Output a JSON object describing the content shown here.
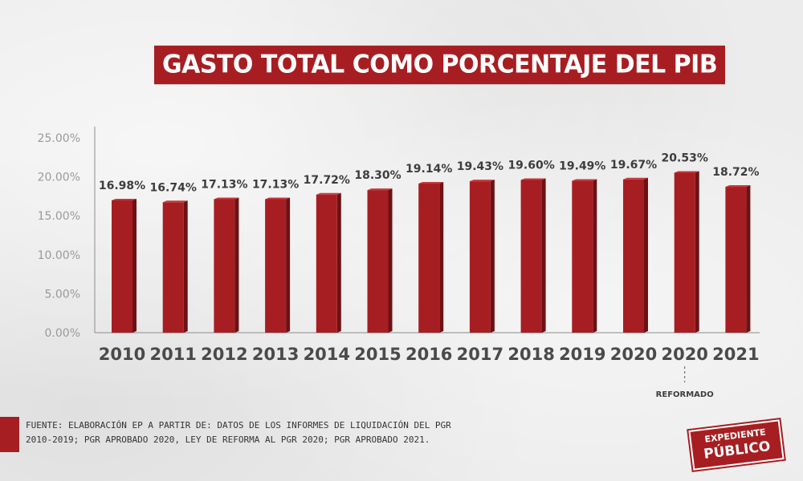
{
  "title": "GASTO TOTAL COMO PORCENTAJE DEL PIB",
  "source_text": "FUENTE: ELABORACIÓN EP A PARTIR DE: DATOS DE LOS INFORMES DE LIQUIDACIÓN DEL PGR 2010-2019; PGR APROBADO 2020, LEY DE REFORMA AL PGR 2020; PGR APROBADO 2021.",
  "logo": {
    "line1": "EXPEDIENTE",
    "line2": "PÚBLICO"
  },
  "colors": {
    "bar": "#a71e22",
    "accent": "#a71e22"
  },
  "chart_data": {
    "type": "bar",
    "title": "GASTO TOTAL COMO PORCENTAJE DEL PIB",
    "categories": [
      "2010",
      "2011",
      "2012",
      "2013",
      "2014",
      "2015",
      "2016",
      "2017",
      "2018",
      "2019",
      "2020",
      "2020",
      "2021"
    ],
    "values": [
      16.98,
      16.74,
      17.13,
      17.13,
      17.72,
      18.3,
      19.14,
      19.43,
      19.6,
      19.49,
      19.67,
      20.53,
      18.72
    ],
    "value_labels": [
      "16.98%",
      "16.74%",
      "17.13%",
      "17.13%",
      "17.72%",
      "18.30%",
      "19.14%",
      "19.43%",
      "19.60%",
      "19.49%",
      "19.67%",
      "20.53%",
      "18.72%"
    ],
    "ytick_values": [
      0,
      5,
      10,
      15,
      20,
      25
    ],
    "ytick_labels": [
      "0.00%",
      "5.00%",
      "10.00%",
      "15.00%",
      "20.00%",
      "25.00%"
    ],
    "ylim": [
      0,
      25
    ],
    "xlabel": "",
    "ylabel": "",
    "annotations": [
      {
        "category_index": 11,
        "text": "REFORMADO"
      }
    ],
    "grid": false
  }
}
